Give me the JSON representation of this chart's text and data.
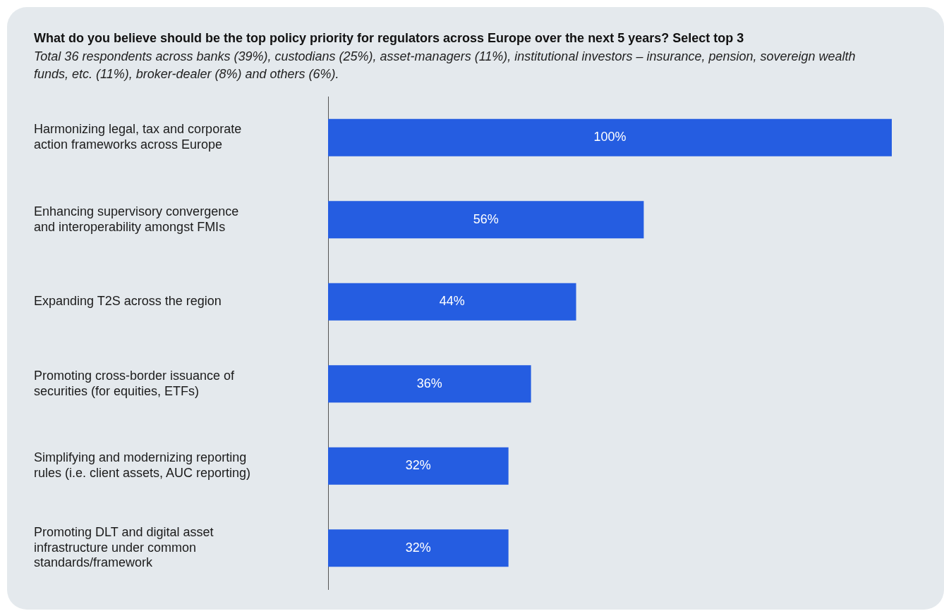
{
  "chart_data": {
    "type": "bar",
    "orientation": "horizontal",
    "title": "What do you believe should be the top policy priority for regulators across Europe over the next 5 years? Select top 3",
    "subtitle": "Total 36 respondents across banks (39%), custodians (25%), asset-managers (11%), institutional investors – insurance, pension, sovereign wealth funds, etc. (11%), broker-dealer (8%) and others (6%).",
    "categories": [
      "Harmonizing legal, tax and corporate action frameworks across Europe",
      "Enhancing supervisory convergence and interoperability amongst FMIs",
      "Expanding T2S across the region",
      "Promoting cross-border issuance of securities (for equities, ETFs)",
      "Simplifying and modernizing reporting rules (i.e. client assets, AUC reporting)",
      "Promoting DLT and digital asset infrastructure under common standards/framework"
    ],
    "values": [
      100,
      56,
      44,
      36,
      32,
      32
    ],
    "value_labels": [
      "100%",
      "56%",
      "44%",
      "36%",
      "32%",
      "32%"
    ],
    "color": "#255de1",
    "xlim": [
      0,
      100
    ],
    "tick_labels": "y",
    "legend": false
  }
}
